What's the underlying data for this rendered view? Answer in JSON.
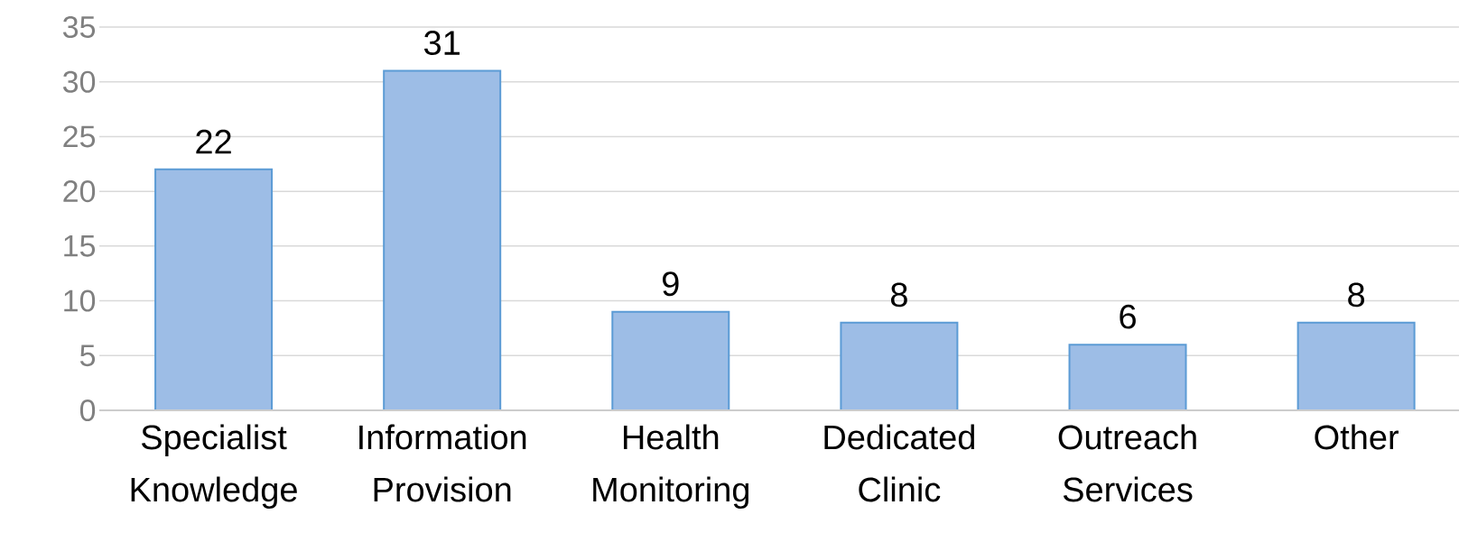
{
  "chart_data": {
    "type": "bar",
    "categories": [
      "Specialist Knowledge",
      "Information Provision",
      "Health Monitoring",
      "Dedicated Clinic",
      "Outreach Services",
      "Other"
    ],
    "values": [
      22,
      31,
      9,
      8,
      6,
      8
    ],
    "color": "#9dbde6",
    "ylim": [
      0,
      35
    ],
    "yticks": [
      0,
      5,
      10,
      15,
      20,
      25,
      30,
      35
    ],
    "grid": "y",
    "data_labels": true
  }
}
